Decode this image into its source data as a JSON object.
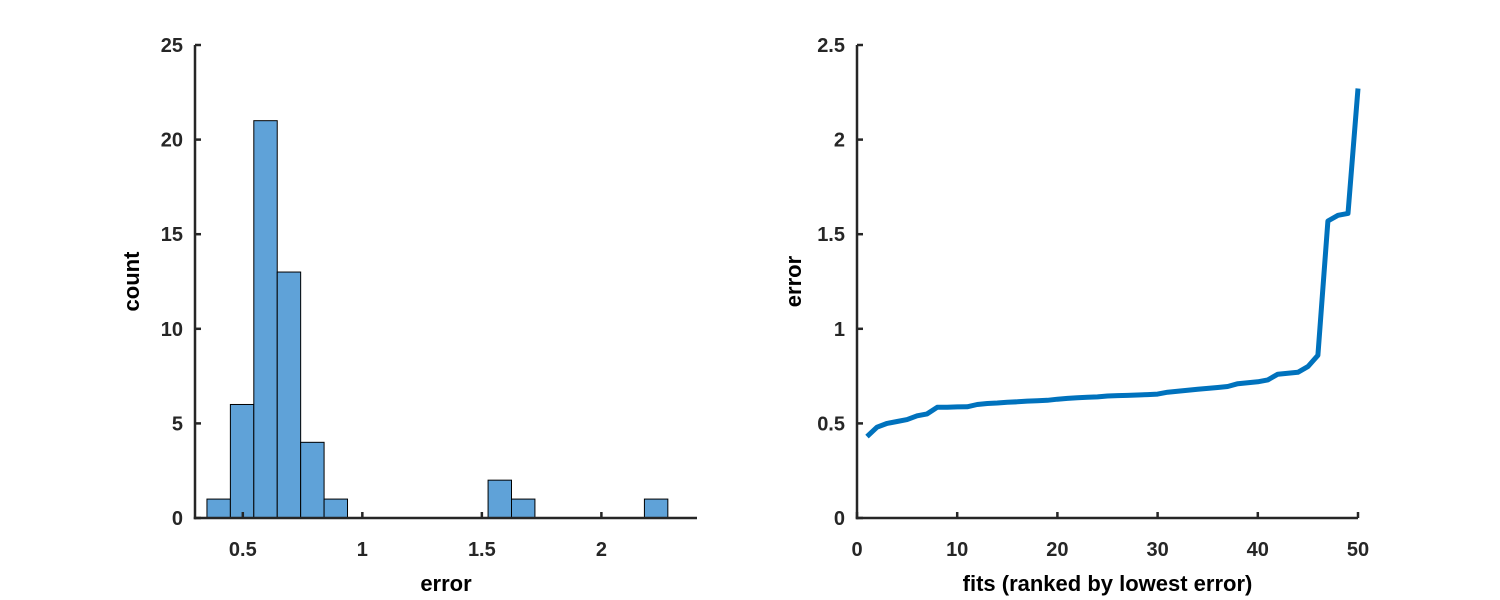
{
  "colors": {
    "histogram_fill": "#5fa2d8",
    "line_color": "#0072bd",
    "axis_color": "#262626"
  },
  "chart_data": [
    {
      "type": "bar",
      "subtype": "histogram",
      "title": "",
      "xlabel": "error",
      "ylabel": "count",
      "xlim": [
        0.3,
        2.4
      ],
      "ylim": [
        0,
        25
      ],
      "xticks": [
        0.5,
        1,
        1.5,
        2
      ],
      "xtick_labels": [
        "0.5",
        "1",
        "1.5",
        "2"
      ],
      "yticks": [
        0,
        5,
        10,
        15,
        20,
        25
      ],
      "ytick_labels": [
        "0",
        "5",
        "10",
        "15",
        "20",
        "25"
      ],
      "bin_width": 0.098,
      "bins": [
        {
          "start": 0.35,
          "count": 1
        },
        {
          "start": 0.448,
          "count": 6
        },
        {
          "start": 0.546,
          "count": 21
        },
        {
          "start": 0.644,
          "count": 13
        },
        {
          "start": 0.742,
          "count": 4
        },
        {
          "start": 0.84,
          "count": 1
        },
        {
          "start": 1.526,
          "count": 2
        },
        {
          "start": 1.624,
          "count": 1
        },
        {
          "start": 2.18,
          "count": 1
        }
      ],
      "grid": false
    },
    {
      "type": "line",
      "title": "",
      "xlabel": "fits (ranked by lowest error)",
      "ylabel": "error",
      "xlim": [
        0,
        50
      ],
      "ylim": [
        0,
        2.5
      ],
      "xticks": [
        0,
        10,
        20,
        30,
        40,
        50
      ],
      "xtick_labels": [
        "0",
        "10",
        "20",
        "30",
        "40",
        "50"
      ],
      "yticks": [
        0,
        0.5,
        1,
        1.5,
        2,
        2.5
      ],
      "ytick_labels": [
        "0",
        "0.5",
        "1",
        "1.5",
        "2",
        "2.5"
      ],
      "x": [
        1,
        2,
        3,
        4,
        5,
        6,
        7,
        8,
        9,
        10,
        11,
        12,
        13,
        14,
        15,
        16,
        17,
        18,
        19,
        20,
        21,
        22,
        23,
        24,
        25,
        26,
        27,
        28,
        29,
        30,
        31,
        32,
        33,
        34,
        35,
        36,
        37,
        38,
        39,
        40,
        41,
        42,
        43,
        44,
        45,
        46,
        47,
        48,
        49,
        50
      ],
      "y": [
        0.43,
        0.48,
        0.5,
        0.51,
        0.52,
        0.54,
        0.55,
        0.585,
        0.585,
        0.587,
        0.588,
        0.6,
        0.605,
        0.608,
        0.612,
        0.614,
        0.618,
        0.62,
        0.622,
        0.628,
        0.632,
        0.636,
        0.638,
        0.64,
        0.645,
        0.647,
        0.648,
        0.65,
        0.652,
        0.655,
        0.665,
        0.67,
        0.675,
        0.68,
        0.685,
        0.69,
        0.695,
        0.71,
        0.715,
        0.72,
        0.73,
        0.76,
        0.765,
        0.77,
        0.8,
        0.86,
        1.57,
        1.6,
        1.61,
        2.27
      ],
      "grid": false
    }
  ]
}
